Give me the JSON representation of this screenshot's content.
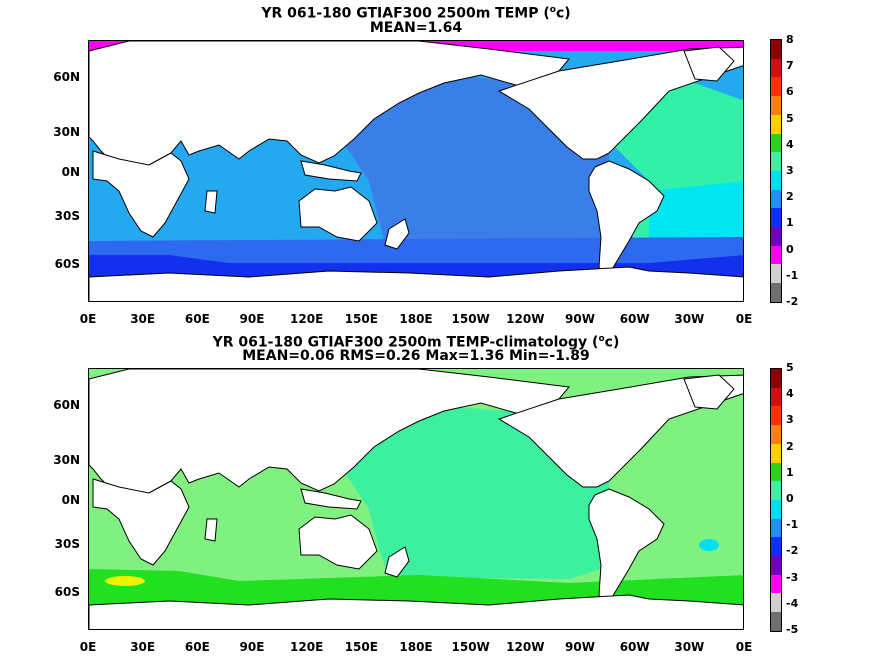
{
  "panels": [
    {
      "title_line1": "YR 061-180 GTIAF300 2500m TEMP (",
      "title_sup": "o",
      "title_unit": "c)",
      "title_line2": "MEAN=1.64",
      "colorbar_labels": [
        "8",
        "7",
        "6",
        "5",
        "4",
        "3",
        "2",
        "1",
        "0",
        "-1",
        "-2"
      ],
      "colorbar_colors": [
        "#8b0000",
        "#d01010",
        "#ff3000",
        "#ff7f10",
        "#ffd000",
        "#30d020",
        "#40f0a0",
        "#00e0f0",
        "#2090ff",
        "#1030ff",
        "#7000c0",
        "#ff00ff",
        "#d0d0d0",
        "#707070"
      ]
    },
    {
      "title_line1": "YR 061-180 GTIAF300 2500m TEMP-climatology (",
      "title_sup": "o",
      "title_unit": "c)",
      "title_line2": "MEAN=0.06   RMS=0.26   Max=1.36   Min=-1.89",
      "colorbar_labels": [
        "5",
        "4",
        "3",
        "2",
        "1",
        "0",
        "-1",
        "-2",
        "-3",
        "-4",
        "-5"
      ],
      "colorbar_colors": [
        "#8b0000",
        "#d01010",
        "#ff3000",
        "#ff7f10",
        "#ffd000",
        "#30d020",
        "#40f0a0",
        "#00e0f0",
        "#2090ff",
        "#1030ff",
        "#7000c0",
        "#ff00ff",
        "#d0d0d0",
        "#707070"
      ]
    }
  ],
  "lat_labels": [
    "60N",
    "30N",
    "0N",
    "30S",
    "60S"
  ],
  "lon_labels": [
    "0E",
    "30E",
    "60E",
    "90E",
    "120E",
    "150E",
    "180E",
    "150W",
    "120W",
    "90W",
    "60W",
    "30W",
    "0E"
  ],
  "map_colors": {
    "top_pacific": "#3a7fe8",
    "top_indian": "#24a8f0",
    "top_atlantic": "#33f0a8",
    "top_atlantic_south": "#00e6f0",
    "top_southern1": "#2e6af0",
    "top_southern2": "#1230ee",
    "top_arctic": "#ff00ff",
    "bot_green_light": "#80f080",
    "bot_green_mint": "#3cf0a0",
    "bot_green_bright": "#20e020",
    "bot_yellow": "#f0f000",
    "bot_cyan": "#00e0f0",
    "land": "#ffffff",
    "coast": "#000000"
  }
}
